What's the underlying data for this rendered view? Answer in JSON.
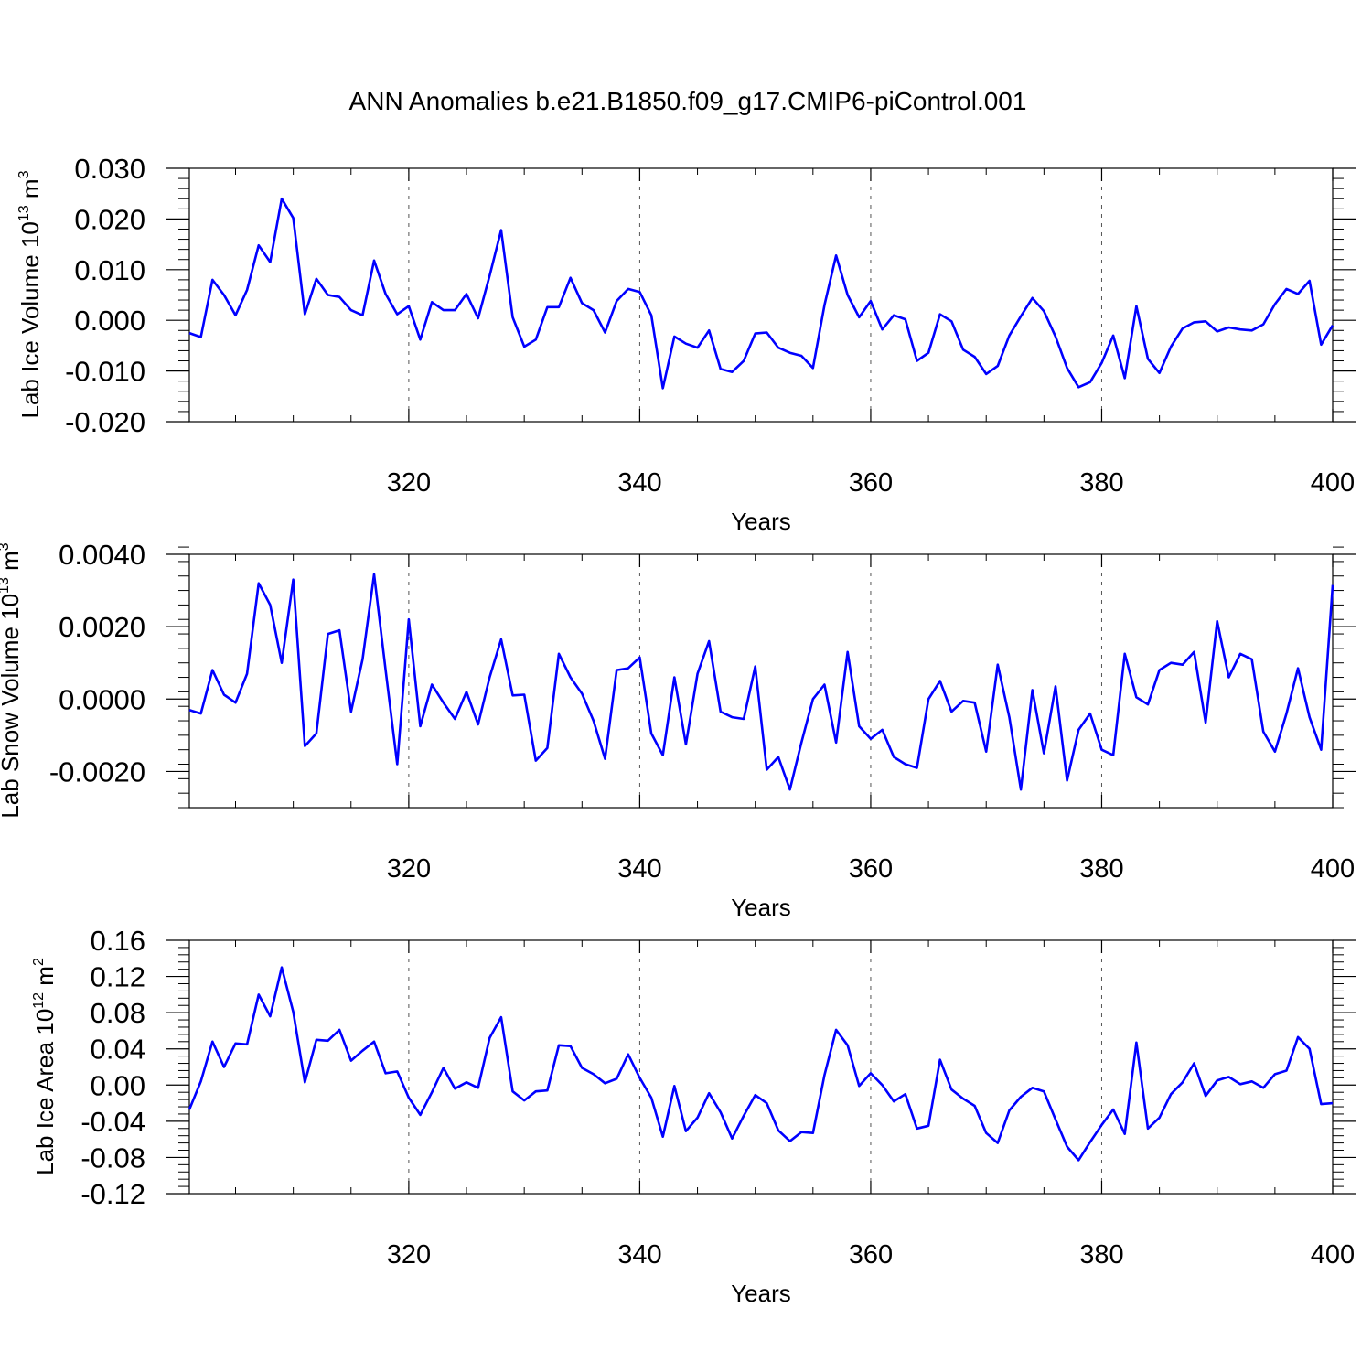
{
  "title": "ANN Anomalies b.e21.B1850.f09_g17.CMIP6-piControl.001",
  "colors": {
    "line": "#0000ff",
    "axis": "#000000",
    "grid": "#555555"
  },
  "chart_data": [
    {
      "type": "line",
      "ylabel_main": "Lab Ice Volume 10",
      "ylabel_exp1": "13",
      "ylabel_unit": " m",
      "ylabel_exp2": "3",
      "xlabel": "Years",
      "xlim": [
        301,
        400
      ],
      "ylim": [
        -0.02,
        0.03
      ],
      "xticks": [
        320,
        340,
        360,
        380,
        400
      ],
      "xtick_labels": [
        "320",
        "340",
        "360",
        "380",
        "400"
      ],
      "yticks": [
        -0.02,
        -0.01,
        0.0,
        0.01,
        0.02,
        0.03
      ],
      "ytick_labels": [
        "-0.020",
        "-0.010",
        "0.000",
        "0.010",
        "0.020",
        "0.030"
      ],
      "x": [
        301,
        302,
        303,
        304,
        305,
        306,
        307,
        308,
        309,
        310,
        311,
        312,
        313,
        314,
        315,
        316,
        317,
        318,
        319,
        320,
        321,
        322,
        323,
        324,
        325,
        326,
        327,
        328,
        329,
        330,
        331,
        332,
        333,
        334,
        335,
        336,
        337,
        338,
        339,
        340,
        341,
        342,
        343,
        344,
        345,
        346,
        347,
        348,
        349,
        350,
        351,
        352,
        353,
        354,
        355,
        356,
        357,
        358,
        359,
        360,
        361,
        362,
        363,
        364,
        365,
        366,
        367,
        368,
        369,
        370,
        371,
        372,
        373,
        374,
        375,
        376,
        377,
        378,
        379,
        380,
        381,
        382,
        383,
        384,
        385,
        386,
        387,
        388,
        389,
        390,
        391,
        392,
        393,
        394,
        395,
        396,
        397,
        398,
        399,
        400
      ],
      "y": [
        -0.0025,
        -0.0033,
        0.008,
        0.005,
        0.001,
        0.006,
        0.0148,
        0.0115,
        0.024,
        0.0202,
        0.0012,
        0.0082,
        0.005,
        0.0046,
        0.002,
        0.001,
        0.0118,
        0.0052,
        0.0012,
        0.0028,
        -0.0038,
        0.0036,
        0.002,
        0.002,
        0.0052,
        0.0004,
        0.0088,
        0.0178,
        0.0006,
        -0.0052,
        -0.0038,
        0.0026,
        0.0026,
        0.0084,
        0.0034,
        0.002,
        -0.0024,
        0.0038,
        0.0062,
        0.0056,
        0.001,
        -0.0134,
        -0.0032,
        -0.0046,
        -0.0054,
        -0.002,
        -0.0096,
        -0.0102,
        -0.008,
        -0.0026,
        -0.0024,
        -0.0054,
        -0.0064,
        -0.007,
        -0.0094,
        0.003,
        0.0128,
        0.005,
        0.0006,
        0.0038,
        -0.0018,
        0.001,
        0.0002,
        -0.008,
        -0.0064,
        0.0012,
        -0.0002,
        -0.0058,
        -0.0072,
        -0.0106,
        -0.009,
        -0.003,
        0.0008,
        0.0044,
        0.0018,
        -0.0032,
        -0.0094,
        -0.0132,
        -0.0122,
        -0.0084,
        -0.003,
        -0.0114,
        0.0028,
        -0.0076,
        -0.0104,
        -0.0052,
        -0.0016,
        -0.0004,
        -0.0002,
        -0.0022,
        -0.0014,
        -0.0018,
        -0.002,
        -0.0008,
        0.0032,
        0.0062,
        0.0052,
        0.0078,
        -0.0048,
        -0.001
      ],
      "grid_x": [
        320,
        340,
        360,
        380
      ]
    },
    {
      "type": "line",
      "ylabel_main": "Lab Snow Volume 10",
      "ylabel_exp1": "13",
      "ylabel_unit": " m",
      "ylabel_exp2": "3",
      "xlabel": "Years",
      "xlim": [
        301,
        400
      ],
      "ylim": [
        -0.003,
        0.004
      ],
      "xticks": [
        320,
        340,
        360,
        380,
        400
      ],
      "xtick_labels": [
        "320",
        "340",
        "360",
        "380",
        "400"
      ],
      "yticks": [
        -0.002,
        0.0,
        0.002,
        0.004
      ],
      "ytick_labels": [
        "-0.0020",
        "0.0000",
        "0.0020",
        "0.0040"
      ],
      "x": [
        301,
        302,
        303,
        304,
        305,
        306,
        307,
        308,
        309,
        310,
        311,
        312,
        313,
        314,
        315,
        316,
        317,
        318,
        319,
        320,
        321,
        322,
        323,
        324,
        325,
        326,
        327,
        328,
        329,
        330,
        331,
        332,
        333,
        334,
        335,
        336,
        337,
        338,
        339,
        340,
        341,
        342,
        343,
        344,
        345,
        346,
        347,
        348,
        349,
        350,
        351,
        352,
        353,
        354,
        355,
        356,
        357,
        358,
        359,
        360,
        361,
        362,
        363,
        364,
        365,
        366,
        367,
        368,
        369,
        370,
        371,
        372,
        373,
        374,
        375,
        376,
        377,
        378,
        379,
        380,
        381,
        382,
        383,
        384,
        385,
        386,
        387,
        388,
        389,
        390,
        391,
        392,
        393,
        394,
        395,
        396,
        397,
        398,
        399,
        400
      ],
      "y": [
        -0.0003,
        -0.0004,
        0.0008,
        0.00012,
        -0.0001,
        0.0007,
        0.0032,
        0.0026,
        0.001,
        0.0033,
        -0.0013,
        -0.00095,
        0.0018,
        0.0019,
        -0.00035,
        0.0011,
        0.00345,
        0.0008,
        -0.0018,
        0.0022,
        -0.00075,
        0.0004,
        -0.0001,
        -0.00055,
        0.0002,
        -0.0007,
        0.0006,
        0.00165,
        0.0001,
        0.00012,
        -0.0017,
        -0.00135,
        0.00125,
        0.0006,
        0.00015,
        -0.0006,
        -0.00165,
        0.0008,
        0.00085,
        0.00115,
        -0.00095,
        -0.00155,
        0.0006,
        -0.00125,
        0.0007,
        0.0016,
        -0.00035,
        -0.0005,
        -0.00055,
        0.0009,
        -0.00195,
        -0.0016,
        -0.0025,
        -0.0012,
        0.0,
        0.0004,
        -0.0012,
        0.0013,
        -0.00075,
        -0.0011,
        -0.00085,
        -0.0016,
        -0.0018,
        -0.0019,
        0.0,
        0.0005,
        -0.00035,
        -5e-05,
        -0.0001,
        -0.00145,
        0.00095,
        -0.0005,
        -0.0025,
        0.00025,
        -0.0015,
        0.00035,
        -0.00225,
        -0.00085,
        -0.0004,
        -0.0014,
        -0.00155,
        0.00125,
        5e-05,
        -0.00015,
        0.0008,
        0.001,
        0.00095,
        0.0013,
        -0.00065,
        0.00215,
        0.0006,
        0.00125,
        0.0011,
        -0.0009,
        -0.00145,
        -0.0004,
        0.00085,
        -0.0005,
        -0.0014,
        0.00315
      ],
      "grid_x": [
        320,
        340,
        360,
        380
      ]
    },
    {
      "type": "line",
      "ylabel_main": "Lab Ice Area 10",
      "ylabel_exp1": "12",
      "ylabel_unit": " m",
      "ylabel_exp2": "2",
      "xlabel": "Years",
      "xlim": [
        301,
        400
      ],
      "ylim": [
        -0.12,
        0.16
      ],
      "xticks": [
        320,
        340,
        360,
        380,
        400
      ],
      "xtick_labels": [
        "320",
        "340",
        "360",
        "380",
        "400"
      ],
      "yticks": [
        -0.12,
        -0.08,
        -0.04,
        0.0,
        0.04,
        0.08,
        0.12,
        0.16
      ],
      "ytick_labels": [
        "-0.12",
        "-0.08",
        "-0.04",
        "0.00",
        "0.04",
        "0.08",
        "0.12",
        "0.16"
      ],
      "x": [
        301,
        302,
        303,
        304,
        305,
        306,
        307,
        308,
        309,
        310,
        311,
        312,
        313,
        314,
        315,
        316,
        317,
        318,
        319,
        320,
        321,
        322,
        323,
        324,
        325,
        326,
        327,
        328,
        329,
        330,
        331,
        332,
        333,
        334,
        335,
        336,
        337,
        338,
        339,
        340,
        341,
        342,
        343,
        344,
        345,
        346,
        347,
        348,
        349,
        350,
        351,
        352,
        353,
        354,
        355,
        356,
        357,
        358,
        359,
        360,
        361,
        362,
        363,
        364,
        365,
        366,
        367,
        368,
        369,
        370,
        371,
        372,
        373,
        374,
        375,
        376,
        377,
        378,
        379,
        380,
        381,
        382,
        383,
        384,
        385,
        386,
        387,
        388,
        389,
        390,
        391,
        392,
        393,
        394,
        395,
        396,
        397,
        398,
        399,
        400
      ],
      "y": [
        -0.027,
        0.004,
        0.048,
        0.02,
        0.046,
        0.045,
        0.1,
        0.076,
        0.13,
        0.081,
        0.003,
        0.05,
        0.049,
        0.061,
        0.027,
        0.038,
        0.048,
        0.013,
        0.015,
        -0.014,
        -0.033,
        -0.008,
        0.019,
        -0.004,
        0.003,
        -0.003,
        0.052,
        0.075,
        -0.007,
        -0.017,
        -0.007,
        -0.006,
        0.044,
        0.043,
        0.019,
        0.012,
        0.002,
        0.007,
        0.034,
        0.008,
        -0.014,
        -0.057,
        -0.001,
        -0.051,
        -0.036,
        -0.009,
        -0.03,
        -0.059,
        -0.034,
        -0.011,
        -0.02,
        -0.05,
        -0.062,
        -0.052,
        -0.053,
        0.011,
        0.061,
        0.044,
        -0.001,
        0.013,
        0.0,
        -0.018,
        -0.01,
        -0.048,
        -0.045,
        0.028,
        -0.005,
        -0.015,
        -0.023,
        -0.053,
        -0.064,
        -0.028,
        -0.013,
        -0.003,
        -0.007,
        -0.038,
        -0.068,
        -0.083,
        -0.063,
        -0.044,
        -0.027,
        -0.054,
        0.047,
        -0.048,
        -0.036,
        -0.01,
        0.003,
        0.024,
        -0.012,
        0.005,
        0.009,
        0.001,
        0.004,
        -0.003,
        0.012,
        0.016,
        0.053,
        0.04,
        -0.021,
        -0.02
      ],
      "grid_x": [
        320,
        340,
        360,
        380
      ]
    }
  ]
}
